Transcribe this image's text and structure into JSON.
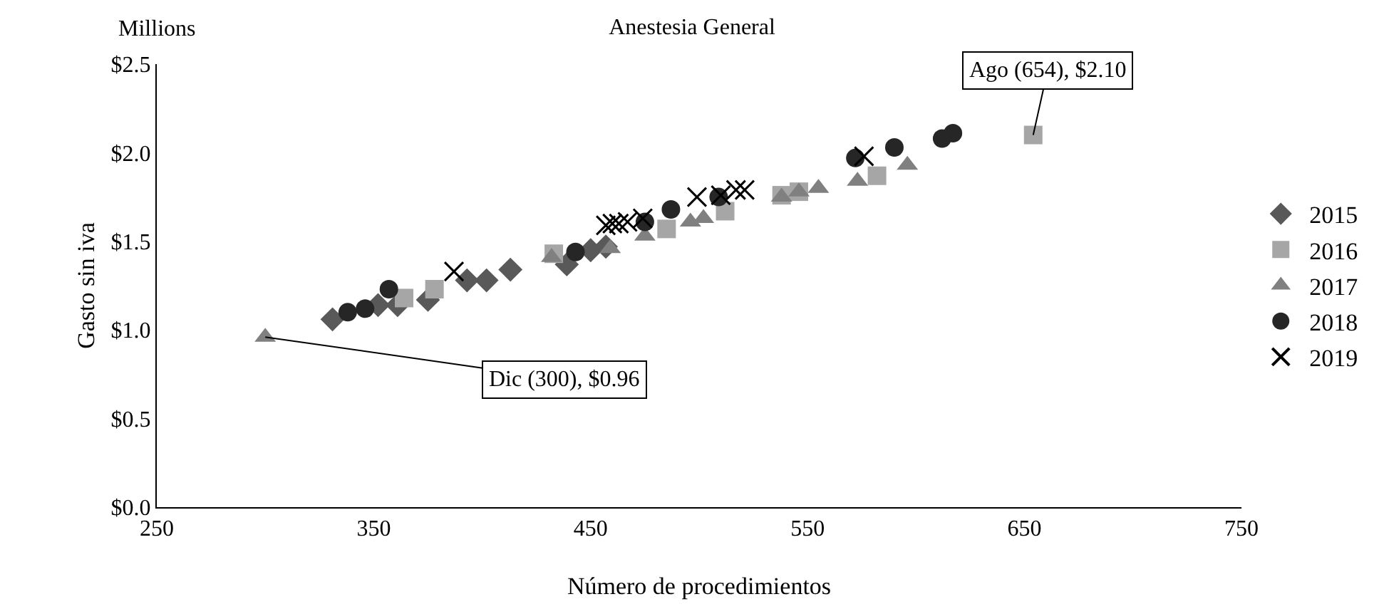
{
  "chart_data": {
    "type": "scatter",
    "title": "Anestesia General",
    "xlabel": "Número de procedimientos",
    "ylabel": "Gasto sin iva",
    "annotations": [
      "Millions",
      {
        "text": "Ago (654), $2.10",
        "x": 654,
        "y": 2.1
      },
      {
        "text": "Dic (300), $0.96",
        "x": 300,
        "y": 0.96
      }
    ],
    "xlim": [
      250,
      750
    ],
    "xticks": [
      250,
      350,
      450,
      550,
      650,
      750
    ],
    "ylim": [
      0,
      2.5
    ],
    "yticks": [
      {
        "value": 0,
        "label": "$0.0"
      },
      {
        "value": 0.5,
        "label": "$0.5"
      },
      {
        "value": 1,
        "label": "$1.0"
      },
      {
        "value": 1.5,
        "label": "$1.5"
      },
      {
        "value": 2,
        "label": "$2.0"
      },
      {
        "value": 2.5,
        "label": "$2.5"
      }
    ],
    "grid": false,
    "legend": "right",
    "series": [
      {
        "name": "2015",
        "color": "#595959",
        "marker": "diamond",
        "x": [
          331,
          352,
          361,
          375,
          393,
          402,
          413,
          439,
          450,
          457
        ],
        "values": [
          1.06,
          1.14,
          1.14,
          1.17,
          1.28,
          1.28,
          1.34,
          1.37,
          1.45,
          1.47
        ]
      },
      {
        "name": "2016",
        "color": "#a6a6a6",
        "marker": "square",
        "x": [
          364,
          378,
          433,
          485,
          512,
          538,
          546,
          582,
          654
        ],
        "values": [
          1.18,
          1.23,
          1.43,
          1.57,
          1.67,
          1.76,
          1.78,
          1.87,
          2.1
        ]
      },
      {
        "name": "2017",
        "color": "#808080",
        "marker": "triangle",
        "x": [
          300,
          432,
          459,
          475,
          496,
          502,
          538,
          546,
          555,
          573,
          596
        ],
        "values": [
          0.96,
          1.41,
          1.46,
          1.53,
          1.61,
          1.63,
          1.75,
          1.78,
          1.8,
          1.84,
          1.93
        ]
      },
      {
        "name": "2018",
        "color": "#262626",
        "marker": "circle",
        "x": [
          338,
          346,
          357,
          443,
          475,
          487,
          509,
          572,
          590,
          612,
          617
        ],
        "values": [
          1.1,
          1.12,
          1.23,
          1.44,
          1.61,
          1.68,
          1.75,
          1.97,
          2.03,
          2.08,
          2.11
        ]
      },
      {
        "name": "2019",
        "color": "#000000",
        "marker": "cross",
        "x": [
          387,
          457,
          460,
          463,
          467,
          474,
          499,
          510,
          517,
          521,
          576
        ],
        "values": [
          1.33,
          1.59,
          1.6,
          1.6,
          1.61,
          1.63,
          1.75,
          1.76,
          1.79,
          1.79,
          1.98
        ]
      }
    ]
  }
}
